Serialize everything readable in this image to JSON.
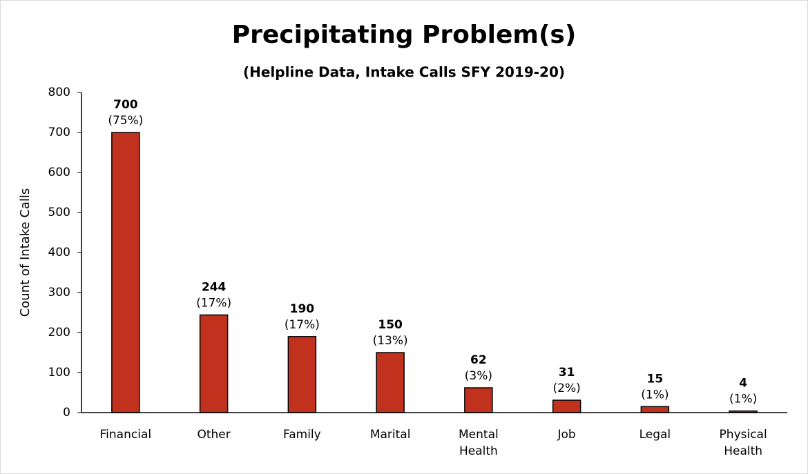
{
  "chart_data": {
    "type": "bar",
    "title": "Precipitating Problem(s)",
    "subtitle": "(Helpline Data, Intake Calls SFY 2019-20)",
    "y_label": "Count of Intake Calls",
    "categories": [
      "Financial",
      "Other",
      "Family",
      "Marital",
      "Mental Health",
      "Job",
      "Legal",
      "Physical Health"
    ],
    "values": [
      700,
      244,
      190,
      150,
      62,
      31,
      15,
      4
    ],
    "percent_labels": [
      "(75%)",
      "(17%)",
      "(17%)",
      "(13%)",
      "(3%)",
      "(2%)",
      "(1%)",
      "(1%)"
    ],
    "color": "#c0321e",
    "ylim": [
      0,
      800
    ],
    "yticks": [
      0,
      100,
      200,
      300,
      400,
      500,
      600,
      700,
      800
    ],
    "grid": false
  }
}
